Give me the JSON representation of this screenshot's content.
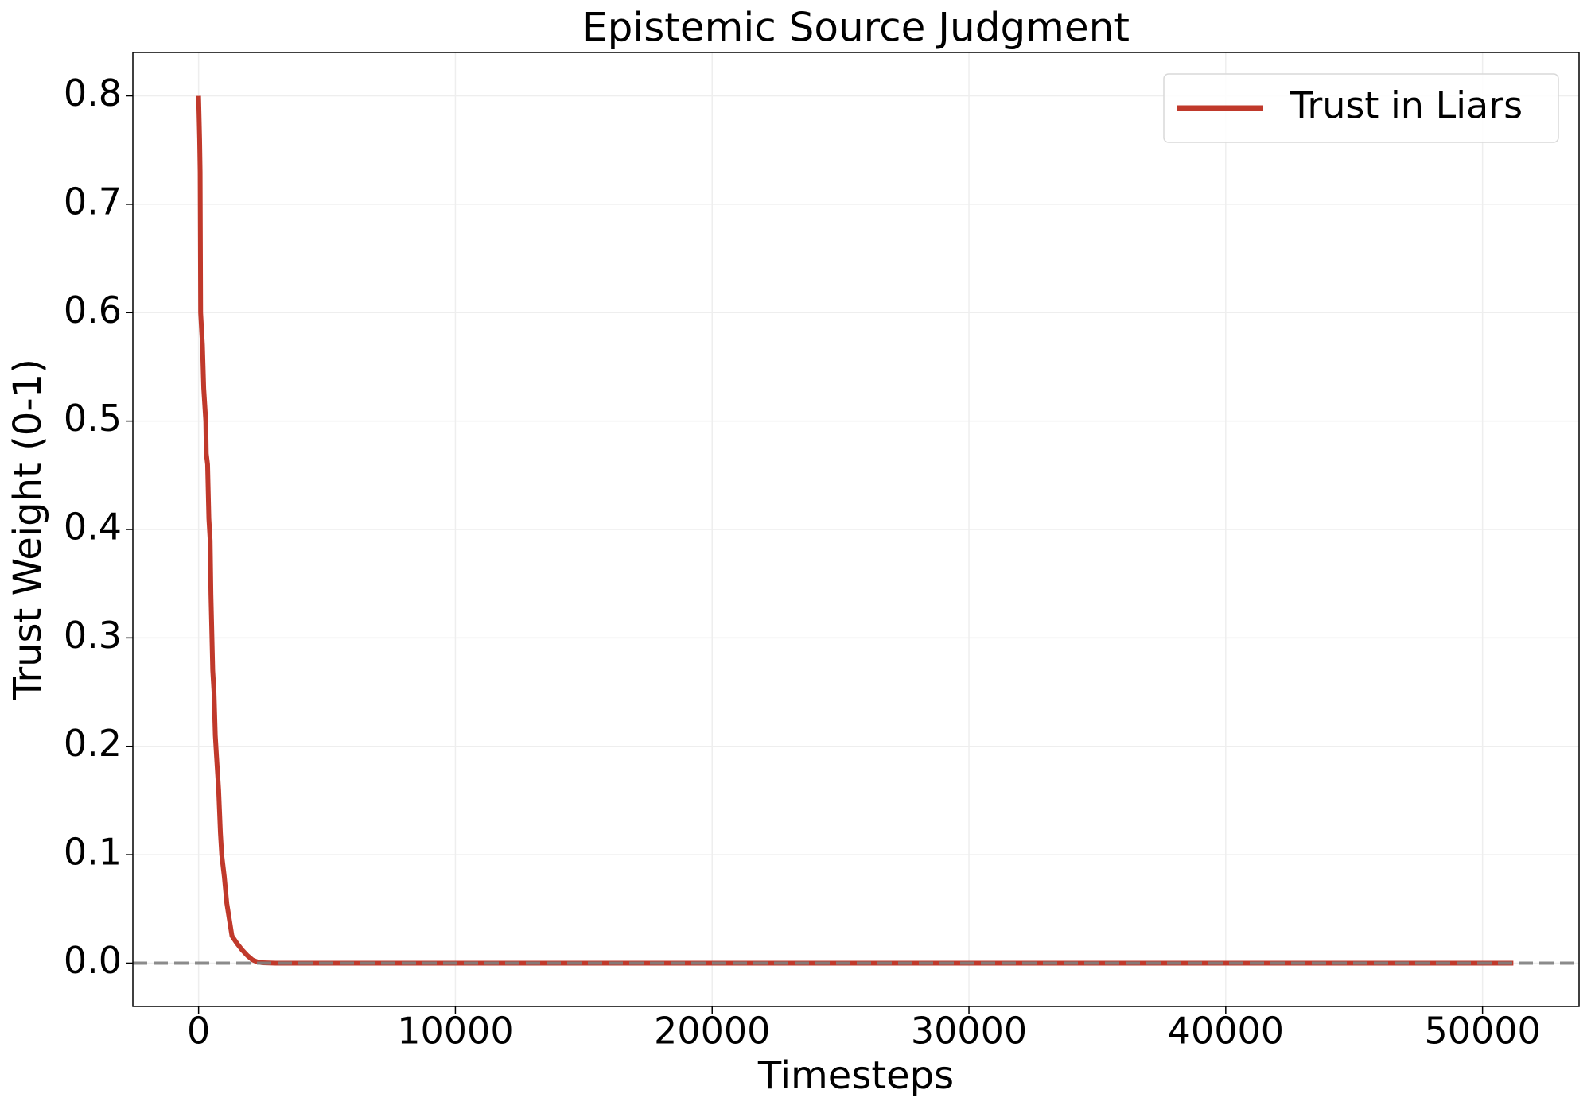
{
  "chart_data": {
    "type": "line",
    "title": "Epistemic Source Judgment",
    "x_label": "Timesteps",
    "y_label": "Trust Weight (0-1)",
    "x": [
      0,
      40,
      60,
      80,
      150,
      200,
      280,
      300,
      350,
      400,
      450,
      480,
      550,
      600,
      650,
      700,
      780,
      850,
      900,
      1000,
      1100,
      1200,
      1300,
      1500,
      1700,
      1900,
      2100,
      2300,
      2500,
      3000,
      51200
    ],
    "series": [
      {
        "name": "Trust in Liars",
        "color": "#c0392b",
        "values": [
          0.8,
          0.76,
          0.73,
          0.6,
          0.57,
          0.53,
          0.5,
          0.47,
          0.46,
          0.41,
          0.39,
          0.34,
          0.27,
          0.25,
          0.21,
          0.19,
          0.16,
          0.12,
          0.1,
          0.08,
          0.055,
          0.04,
          0.025,
          0.018,
          0.012,
          0.007,
          0.003,
          0.001,
          0.0003,
          0,
          0
        ]
      }
    ],
    "xlim": [
      -2560,
      53760
    ],
    "ylim": [
      -0.04,
      0.84
    ],
    "xticks": [
      0,
      10000,
      20000,
      30000,
      40000,
      50000
    ],
    "yticks": [
      {
        "value": 0,
        "label": "0.0"
      },
      0.1,
      0.2,
      0.3,
      0.4,
      0.5,
      0.6,
      0.7,
      0.8
    ],
    "hline": 0,
    "hline_color": "#808080",
    "grid": true,
    "legend": "upper right"
  }
}
